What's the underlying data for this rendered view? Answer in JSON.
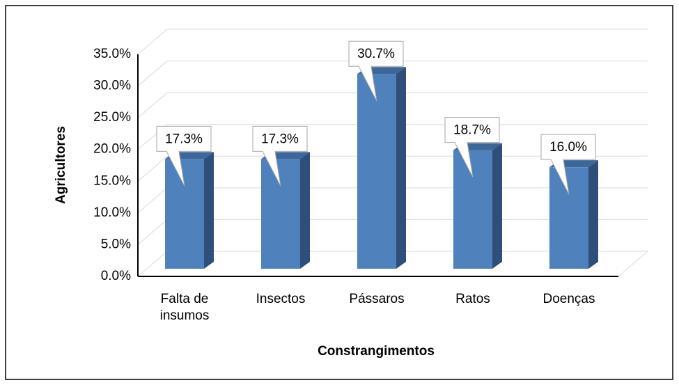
{
  "chart_data": {
    "type": "bar3d",
    "categories": [
      "Falta de insumos",
      "Insectos",
      "Pássaros",
      "Ratos",
      "Doenças"
    ],
    "values": [
      17.3,
      17.3,
      30.7,
      18.7,
      16.0
    ],
    "value_labels": [
      "17.3%",
      "17.3%",
      "30.7%",
      "18.7%",
      "16.0%"
    ],
    "color": "#4f81bd",
    "ylim": [
      0,
      35
    ],
    "yticks": [
      {
        "value": 0,
        "label": "0.0%"
      },
      {
        "value": 5,
        "label": "5.0%"
      },
      {
        "value": 10,
        "label": "10.0%"
      },
      {
        "value": 15,
        "label": "15.0%"
      },
      {
        "value": 20,
        "label": "20.0%"
      },
      {
        "value": 25,
        "label": "25.0%"
      },
      {
        "value": 30,
        "label": "30.0%"
      },
      {
        "value": 35,
        "label": "35.0%"
      }
    ],
    "y_label": "Agricultores",
    "x_label": "Constrangimentos",
    "grid": true
  }
}
